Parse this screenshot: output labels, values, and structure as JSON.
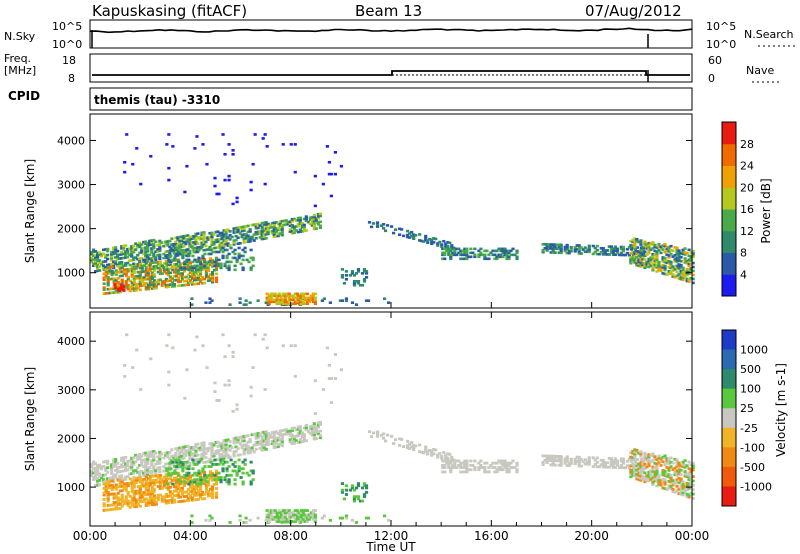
{
  "header": {
    "station": "Kapuskasing (fitACF)",
    "beam": "Beam 13",
    "date": "07/Aug/2012"
  },
  "nsky_panel": {
    "left_label": "N.Sky",
    "right_label": "N.Search",
    "left_ticks": [
      "10^5",
      "10^0"
    ],
    "right_ticks": [
      "10^5",
      "10^0"
    ]
  },
  "freq_panel": {
    "left_label_1": "Freq.",
    "left_label_2": "[MHz]",
    "right_label": "Nave",
    "left_ticks": [
      "18",
      "8"
    ],
    "right_ticks": [
      "60",
      "0"
    ]
  },
  "cpid_panel": {
    "label": "CPID",
    "text": "themis (tau) -3310"
  },
  "chart_data": [
    {
      "type": "heatmap",
      "panel": "power",
      "ylabel": "Slant Range [km]",
      "xlabel": "Time UT",
      "x_ticks": [
        "00:00",
        "04:00",
        "08:00",
        "12:00",
        "16:00",
        "20:00",
        "00:00"
      ],
      "y_ticks": [
        1000,
        2000,
        3000,
        4000
      ],
      "ylim": [
        200,
        4600
      ],
      "xlim_hours": [
        0,
        24
      ],
      "colorbar": {
        "label": "Power [dB]",
        "ticks": [
          "4",
          "8",
          "12",
          "16",
          "20",
          "24",
          "28"
        ],
        "colors": [
          "#1c1cf0",
          "#2a5aa8",
          "#2e8a6a",
          "#4aaa4a",
          "#b4c81e",
          "#f0a000",
          "#f06a00",
          "#e81c10"
        ]
      }
    },
    {
      "type": "heatmap",
      "panel": "velocity",
      "ylabel": "Slant Range [km]",
      "xlabel": "Time UT",
      "x_ticks": [
        "00:00",
        "04:00",
        "08:00",
        "12:00",
        "16:00",
        "20:00",
        "00:00"
      ],
      "y_ticks": [
        1000,
        2000,
        3000,
        4000
      ],
      "ylim": [
        200,
        4600
      ],
      "xlim_hours": [
        0,
        24
      ],
      "colorbar": {
        "label": "Velocity [m s-1]",
        "ticks": [
          "1000",
          "500",
          "100",
          "25",
          "-25",
          "-100",
          "-500",
          "-1000"
        ],
        "colors": [
          "#1c3cc8",
          "#2a6ab0",
          "#2e8a6a",
          "#5ac83c",
          "#c8c8c0",
          "#f0b428",
          "#f08a14",
          "#f05a0a",
          "#e81c10"
        ]
      }
    }
  ]
}
